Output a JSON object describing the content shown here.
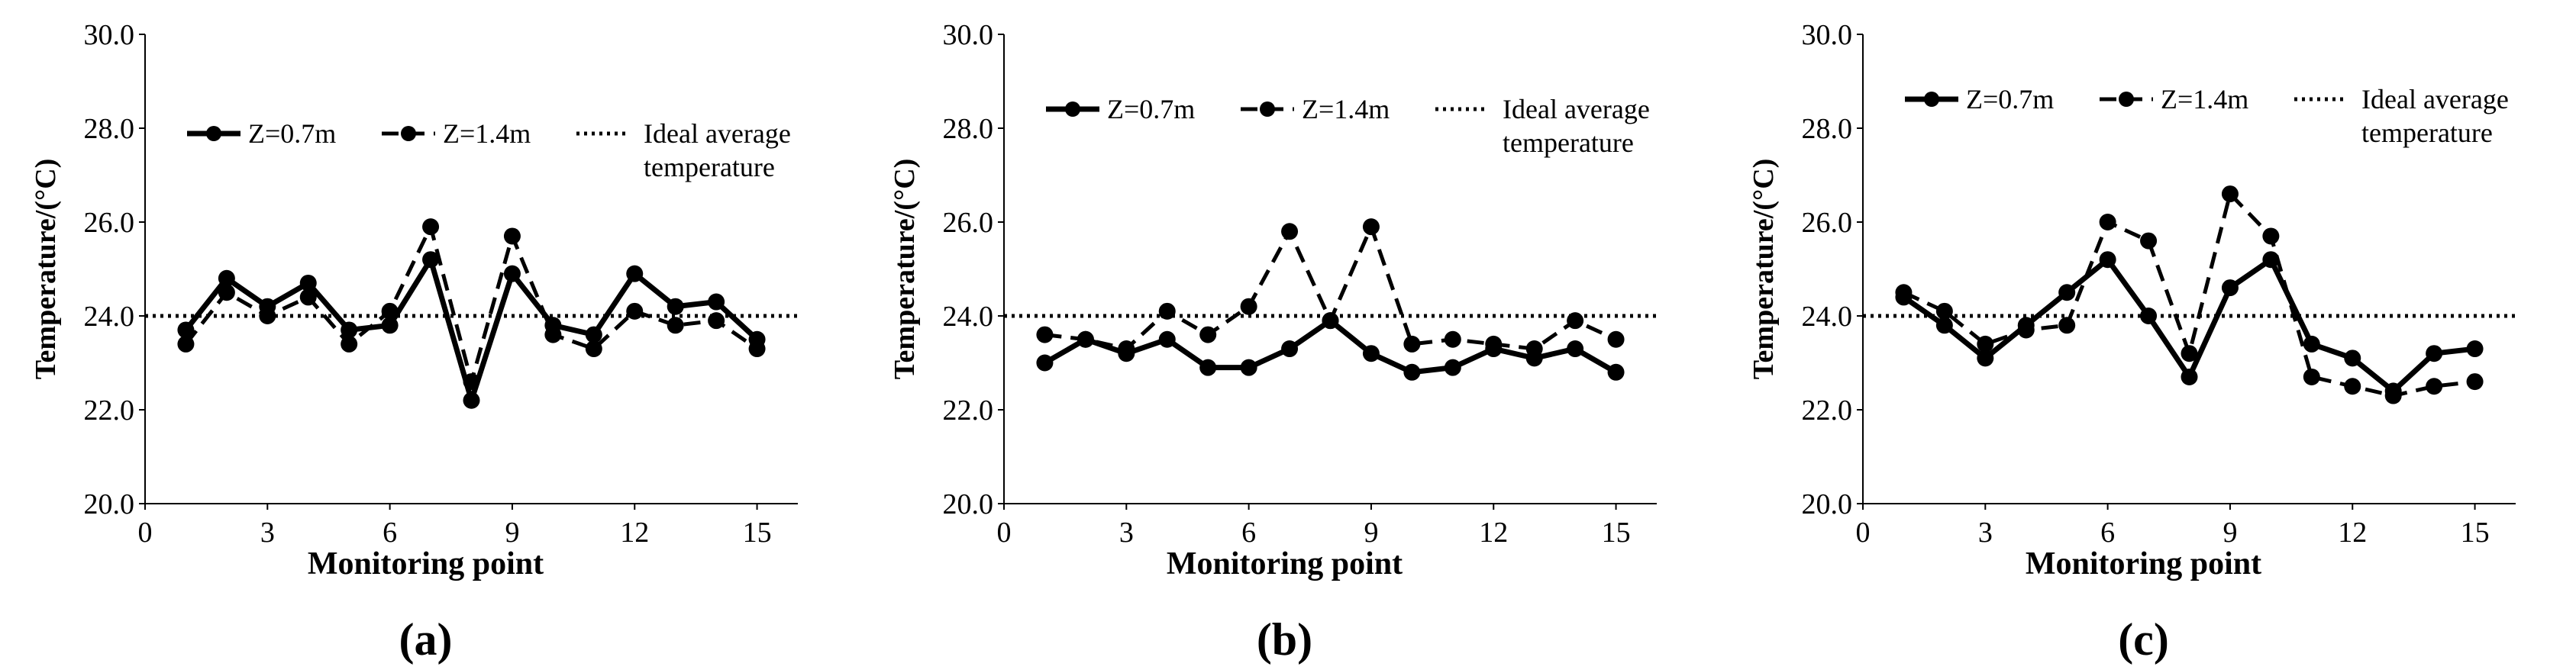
{
  "chart_data": [
    {
      "type": "line",
      "caption": "(a)",
      "xlabel": "Monitoring point",
      "ylabel": "Temperature/(°C)",
      "xlim": [
        0,
        16
      ],
      "ylim": [
        20,
        30
      ],
      "x_ticks": [
        "0",
        "3",
        "6",
        "9",
        "12",
        "15"
      ],
      "y_ticks": [
        "20.0",
        "22.0",
        "24.0",
        "26.0",
        "28.0",
        "30.0"
      ],
      "x": [
        1,
        2,
        3,
        4,
        5,
        6,
        7,
        8,
        9,
        10,
        11,
        12,
        13,
        14,
        15
      ],
      "series": [
        {
          "name": "Z=0.7m",
          "style": "solid",
          "values": [
            23.7,
            24.8,
            24.2,
            24.7,
            23.7,
            23.8,
            25.2,
            22.2,
            24.9,
            23.8,
            23.6,
            24.9,
            24.2,
            24.3,
            23.5
          ]
        },
        {
          "name": "Z=1.4m",
          "style": "dashed",
          "values": [
            23.4,
            24.5,
            24.0,
            24.4,
            23.4,
            24.1,
            25.9,
            22.6,
            25.7,
            23.6,
            23.3,
            24.1,
            23.8,
            23.9,
            23.3
          ]
        },
        {
          "name": "Ideal average temperature",
          "label_lines": [
            "Ideal average",
            "temperature"
          ],
          "style": "dotted",
          "values": [
            24,
            24,
            24,
            24,
            24,
            24,
            24,
            24,
            24,
            24,
            24,
            24,
            24,
            24,
            24
          ]
        }
      ]
    },
    {
      "type": "line",
      "caption": "(b)",
      "xlabel": "Monitoring point",
      "ylabel": "Temperature/(°C)",
      "xlim": [
        0,
        16
      ],
      "ylim": [
        20,
        30
      ],
      "x_ticks": [
        "0",
        "3",
        "6",
        "9",
        "12",
        "15"
      ],
      "y_ticks": [
        "20.0",
        "22.0",
        "24.0",
        "26.0",
        "28.0",
        "30.0"
      ],
      "x": [
        1,
        2,
        3,
        4,
        5,
        6,
        7,
        8,
        9,
        10,
        11,
        12,
        13,
        14,
        15
      ],
      "series": [
        {
          "name": "Z=0.7m",
          "style": "solid",
          "values": [
            23.0,
            23.5,
            23.2,
            23.5,
            22.9,
            22.9,
            23.3,
            23.9,
            23.2,
            22.8,
            22.9,
            23.3,
            23.1,
            23.3,
            22.8
          ]
        },
        {
          "name": "Z=1.4m",
          "style": "dashed",
          "values": [
            23.6,
            23.5,
            23.3,
            24.1,
            23.6,
            24.2,
            25.8,
            23.9,
            25.9,
            23.4,
            23.5,
            23.4,
            23.3,
            23.9,
            23.5
          ]
        },
        {
          "name": "Ideal average temperature",
          "label_lines": [
            "Ideal average",
            "temperature"
          ],
          "style": "dotted",
          "values": [
            24,
            24,
            24,
            24,
            24,
            24,
            24,
            24,
            24,
            24,
            24,
            24,
            24,
            24,
            24
          ]
        }
      ]
    },
    {
      "type": "line",
      "caption": "(c)",
      "xlabel": "Monitoring point",
      "ylabel": "Temperature/(°C)",
      "xlim": [
        0,
        16
      ],
      "ylim": [
        20,
        30
      ],
      "x_ticks": [
        "0",
        "3",
        "6",
        "9",
        "12",
        "15"
      ],
      "y_ticks": [
        "20.0",
        "22.0",
        "24.0",
        "26.0",
        "28.0",
        "30.0"
      ],
      "x": [
        1,
        2,
        3,
        4,
        5,
        6,
        7,
        8,
        9,
        10,
        11,
        12,
        13,
        14,
        15
      ],
      "series": [
        {
          "name": "Z=0.7m",
          "style": "solid",
          "values": [
            24.4,
            23.8,
            23.1,
            23.8,
            24.5,
            25.2,
            24.0,
            22.7,
            24.6,
            25.2,
            23.4,
            23.1,
            22.4,
            23.2,
            23.3
          ]
        },
        {
          "name": "Z=1.4m",
          "style": "dashed",
          "values": [
            24.5,
            24.1,
            23.4,
            23.7,
            23.8,
            26.0,
            25.6,
            23.2,
            26.6,
            25.7,
            22.7,
            22.5,
            22.3,
            22.5,
            22.6
          ]
        },
        {
          "name": "Ideal average temperature",
          "label_lines": [
            "Ideal average",
            "temperature"
          ],
          "style": "dotted",
          "values": [
            24,
            24,
            24,
            24,
            24,
            24,
            24,
            24,
            24,
            24,
            24,
            24,
            24,
            24,
            24
          ]
        }
      ]
    }
  ]
}
